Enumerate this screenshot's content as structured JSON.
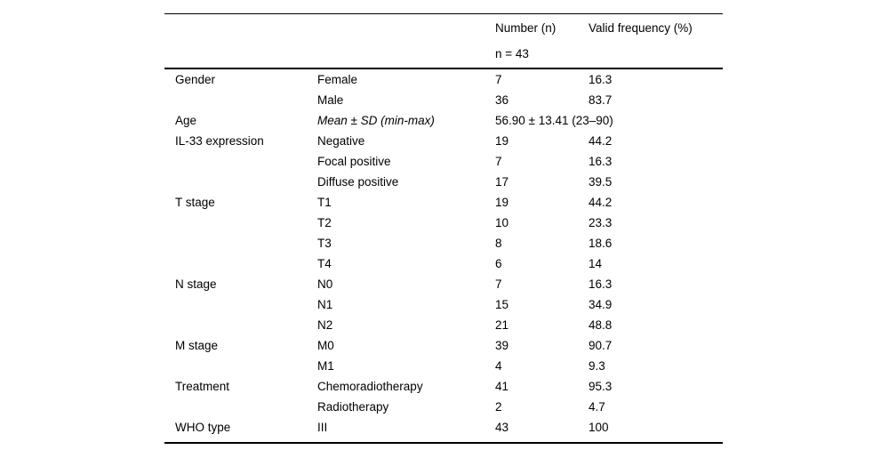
{
  "table": {
    "columns": {
      "category_label": "",
      "sub_label": "",
      "number_label": "Number (n)",
      "number_sublabel": "n = 43",
      "frequency_label": "Valid frequency (%)"
    },
    "rows": [
      {
        "category": "Gender",
        "label": "Female",
        "number": "7",
        "frequency": "16.3"
      },
      {
        "category": "",
        "label": "Male",
        "number": "36",
        "frequency": "83.7"
      },
      {
        "category": "Age",
        "label": "Mean ± SD (min-max)",
        "number": "56.90 ± 13.41 (23–90)",
        "frequency": "",
        "italic": true,
        "span": true
      },
      {
        "category": "IL-33 expression",
        "label": "Negative",
        "number": "19",
        "frequency": "44.2"
      },
      {
        "category": "",
        "label": "Focal positive",
        "number": "7",
        "frequency": "16.3"
      },
      {
        "category": "",
        "label": "Diffuse positive",
        "number": "17",
        "frequency": "39.5"
      },
      {
        "category": "T stage",
        "label": "T1",
        "number": "19",
        "frequency": "44.2"
      },
      {
        "category": "",
        "label": "T2",
        "number": "10",
        "frequency": "23.3"
      },
      {
        "category": "",
        "label": "T3",
        "number": "8",
        "frequency": "18.6"
      },
      {
        "category": "",
        "label": "T4",
        "number": "6",
        "frequency": "14"
      },
      {
        "category": "N stage",
        "label": "N0",
        "number": "7",
        "frequency": "16.3"
      },
      {
        "category": "",
        "label": "N1",
        "number": "15",
        "frequency": "34.9"
      },
      {
        "category": "",
        "label": "N2",
        "number": "21",
        "frequency": "48.8"
      },
      {
        "category": "M stage",
        "label": "M0",
        "number": "39",
        "frequency": "90.7"
      },
      {
        "category": "",
        "label": "M1",
        "number": "4",
        "frequency": "9.3"
      },
      {
        "category": "Treatment",
        "label": "Chemoradiotherapy",
        "number": "41",
        "frequency": "95.3"
      },
      {
        "category": "",
        "label": "Radiotherapy",
        "number": "2",
        "frequency": "4.7"
      },
      {
        "category": "WHO type",
        "label": "III",
        "number": "43",
        "frequency": "100"
      }
    ]
  }
}
